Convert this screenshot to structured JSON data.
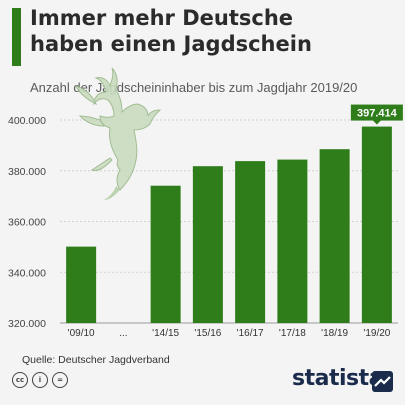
{
  "header": {
    "title_line1": "Immer mehr Deutsche",
    "title_line2": "haben einen Jagdschein",
    "subtitle": "Anzahl der Jagdscheininhaber bis zum Jagdjahr 2019/20"
  },
  "chart_data": {
    "type": "bar",
    "title": "Immer mehr Deutsche haben einen Jagdschein",
    "subtitle": "Anzahl der Jagdscheininhaber bis zum Jagdjahr 2019/20",
    "categories": [
      "'09/10",
      "...",
      "'14/15",
      "'15/16",
      "'16/17",
      "'17/18",
      "'18/19",
      "'19/20"
    ],
    "values": [
      350100,
      null,
      374100,
      381800,
      383800,
      384400,
      388500,
      397414
    ],
    "highlight_label": "397.414",
    "highlight_index": 7,
    "ylim": [
      320000,
      400000
    ],
    "yticks": [
      320000,
      340000,
      360000,
      380000,
      400000
    ],
    "ytick_labels": [
      "320.000",
      "340.000",
      "360.000",
      "380.000",
      "400.000"
    ],
    "grid": true,
    "bar_color": "#2e7d1a",
    "label_box_color": "#2e7d1a"
  },
  "footer": {
    "source": "Quelle: Deutscher Jagdverband",
    "license_icons": [
      "cc-icon",
      "by-icon",
      "nd-icon"
    ],
    "license_icon_text": [
      "cc",
      "i",
      "="
    ],
    "brand": "statista"
  }
}
